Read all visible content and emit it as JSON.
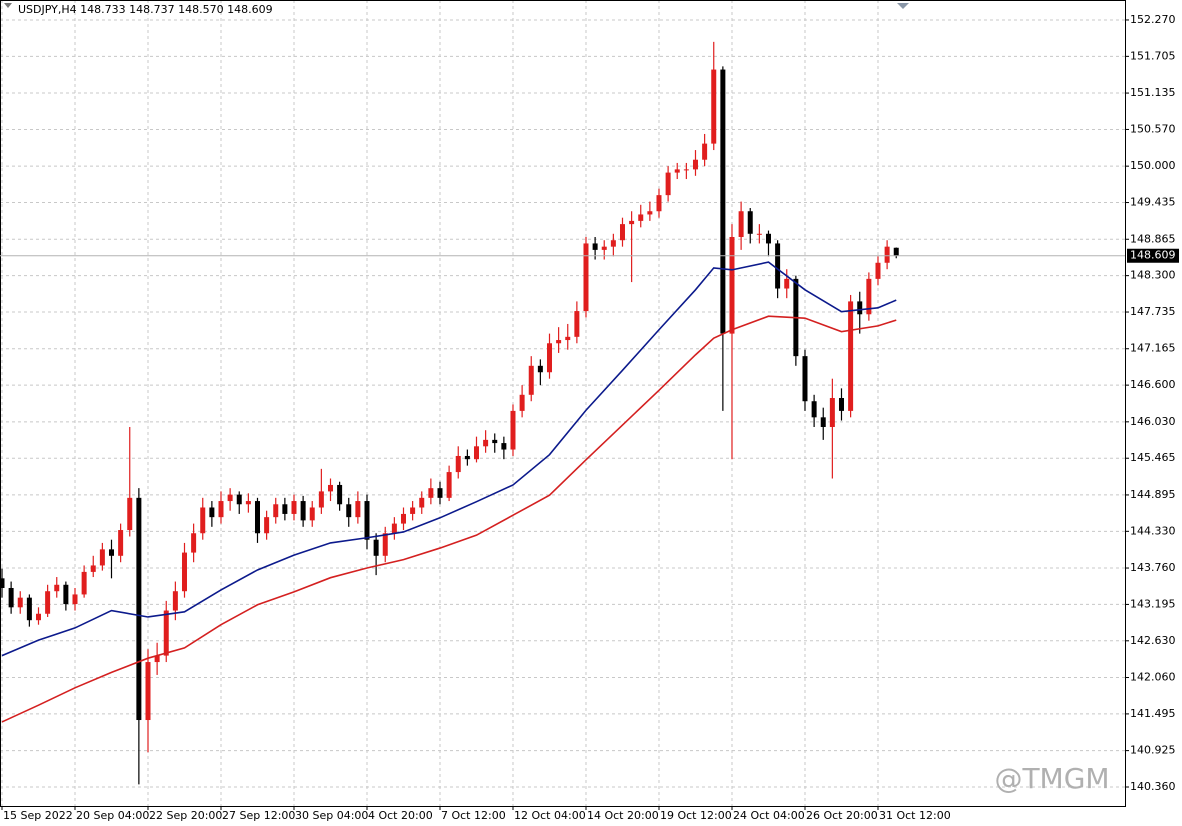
{
  "chart_data": {
    "type": "candlestick",
    "header": "USDJPY,H4 148.733 148.737 148.570 148.609",
    "watermark": "@TMGM",
    "up_color": "#e01e1e",
    "down_color": "#000000",
    "grid": true,
    "ylim": [
      140.065,
      152.58
    ],
    "xlim": [
      -0.219,
      123.07
    ],
    "yticks": [
      {
        "value": 152.27,
        "label": "152.270"
      },
      {
        "value": 151.705,
        "label": "151.705"
      },
      {
        "value": 151.135,
        "label": "151.135"
      },
      {
        "value": 150.57,
        "label": "150.570"
      },
      {
        "value": 150,
        "label": "150.000"
      },
      {
        "value": 149.435,
        "label": "149.435"
      },
      {
        "value": 148.865,
        "label": "148.865"
      },
      {
        "value": 148.3,
        "label": "148.300"
      },
      {
        "value": 147.735,
        "label": "147.735"
      },
      {
        "value": 147.165,
        "label": "147.165"
      },
      {
        "value": 146.6,
        "label": "146.600"
      },
      {
        "value": 146.03,
        "label": "146.030"
      },
      {
        "value": 145.465,
        "label": "145.465"
      },
      {
        "value": 144.895,
        "label": "144.895"
      },
      {
        "value": 144.33,
        "label": "144.330"
      },
      {
        "value": 143.76,
        "label": "143.760"
      },
      {
        "value": 143.195,
        "label": "143.195"
      },
      {
        "value": 142.63,
        "label": "142.630"
      },
      {
        "value": 142.06,
        "label": "142.060"
      },
      {
        "value": 141.495,
        "label": "141.495"
      },
      {
        "value": 140.925,
        "label": "140.925"
      },
      {
        "value": 140.36,
        "label": "140.360"
      }
    ],
    "xticks": [
      {
        "value": 0,
        "label": "15 Sep 2022"
      },
      {
        "value": 8,
        "label": "20 Sep 04:00"
      },
      {
        "value": 16,
        "label": "22 Sep 20:00"
      },
      {
        "value": 24,
        "label": "27 Sep 12:00"
      },
      {
        "value": 32,
        "label": "30 Sep 04:00"
      },
      {
        "value": 40,
        "label": "4 Oct 20:00"
      },
      {
        "value": 48,
        "label": "7 Oct 12:00"
      },
      {
        "value": 56,
        "label": "12 Oct 04:00"
      },
      {
        "value": 64,
        "label": "14 Oct 20:00"
      },
      {
        "value": 72,
        "label": "19 Oct 12:00"
      },
      {
        "value": 80,
        "label": "24 Oct 04:00"
      },
      {
        "value": 88,
        "label": "26 Oct 20:00"
      },
      {
        "value": 96,
        "label": "31 Oct 12:00"
      }
    ],
    "last_price": {
      "value": 148.609,
      "label": "148.609"
    },
    "x": [
      0,
      1,
      2,
      3,
      4,
      5,
      6,
      7,
      8,
      9,
      10,
      11,
      12,
      13,
      14,
      15,
      16,
      17,
      18,
      19,
      20,
      21,
      22,
      23,
      24,
      25,
      26,
      27,
      28,
      29,
      30,
      31,
      32,
      33,
      34,
      35,
      36,
      37,
      38,
      39,
      40,
      41,
      42,
      43,
      44,
      45,
      46,
      47,
      48,
      49,
      50,
      51,
      52,
      53,
      54,
      55,
      56,
      57,
      58,
      59,
      60,
      61,
      62,
      63,
      64,
      65,
      66,
      67,
      68,
      69,
      70,
      71,
      72,
      73,
      74,
      75,
      76,
      77,
      78,
      79,
      80,
      81,
      82,
      83,
      84,
      85,
      86,
      87,
      88,
      89,
      90,
      91,
      92,
      93,
      94,
      95,
      96,
      97,
      98
    ],
    "open": [
      143.6,
      143.45,
      143.15,
      143.3,
      142.95,
      143.05,
      143.4,
      143.5,
      143.2,
      143.35,
      143.7,
      143.8,
      144.05,
      143.95,
      144.35,
      144.85,
      141.4,
      142.3,
      142.4,
      143.1,
      143.4,
      144.0,
      144.3,
      144.7,
      144.55,
      144.8,
      144.9,
      144.75,
      144.8,
      144.3,
      144.55,
      144.75,
      144.6,
      144.8,
      144.5,
      144.7,
      144.95,
      145.05,
      144.75,
      144.55,
      144.8,
      144.2,
      143.95,
      144.3,
      144.45,
      144.6,
      144.7,
      144.85,
      145.0,
      144.85,
      145.25,
      145.5,
      145.45,
      145.65,
      145.75,
      145.7,
      145.6,
      146.2,
      146.45,
      146.9,
      146.8,
      147.25,
      147.3,
      147.35,
      147.75,
      148.8,
      148.7,
      148.75,
      148.85,
      149.1,
      149.15,
      149.25,
      149.3,
      149.55,
      149.9,
      149.95,
      149.95,
      150.1,
      150.35,
      151.5,
      147.4,
      148.9,
      149.3,
      148.95,
      148.95,
      148.8,
      148.1,
      148.25,
      147.05,
      146.35,
      146.1,
      145.95,
      146.4,
      146.2,
      147.9,
      147.7,
      148.25,
      148.5,
      148.733
    ],
    "high": [
      143.75,
      143.55,
      143.4,
      143.35,
      143.15,
      143.5,
      143.62,
      143.55,
      143.45,
      143.8,
      143.95,
      144.15,
      144.2,
      144.45,
      145.95,
      145.0,
      142.5,
      142.6,
      143.25,
      143.55,
      144.15,
      144.45,
      144.85,
      144.8,
      144.95,
      145.0,
      144.95,
      144.92,
      144.85,
      144.65,
      144.85,
      144.85,
      144.9,
      144.88,
      144.8,
      145.3,
      145.15,
      145.1,
      144.85,
      144.95,
      144.9,
      144.3,
      144.4,
      144.55,
      144.7,
      144.8,
      144.95,
      145.15,
      145.1,
      145.35,
      145.65,
      145.6,
      145.8,
      145.9,
      145.85,
      145.8,
      146.3,
      146.6,
      147.05,
      147.0,
      147.4,
      147.5,
      147.55,
      147.9,
      148.9,
      148.9,
      148.85,
      148.95,
      149.2,
      149.3,
      149.4,
      149.45,
      149.65,
      150.0,
      150.05,
      150.05,
      150.25,
      150.5,
      151.93,
      151.55,
      149.1,
      149.45,
      149.35,
      149.1,
      149.0,
      148.85,
      148.4,
      148.3,
      147.15,
      146.45,
      146.25,
      146.7,
      146.55,
      148.0,
      148.05,
      148.35,
      148.6,
      148.85,
      148.737
    ],
    "low": [
      143.3,
      143.05,
      143.05,
      142.85,
      142.88,
      143.0,
      143.3,
      143.1,
      143.1,
      143.3,
      143.62,
      143.72,
      143.6,
      143.85,
      144.25,
      140.4,
      140.9,
      142.1,
      142.3,
      142.95,
      143.3,
      143.85,
      144.2,
      144.4,
      144.45,
      144.65,
      144.6,
      144.62,
      144.15,
      144.2,
      144.45,
      144.5,
      144.5,
      144.4,
      144.4,
      144.6,
      144.8,
      144.65,
      144.4,
      144.45,
      144.05,
      143.65,
      143.85,
      144.2,
      144.35,
      144.5,
      144.6,
      144.75,
      144.75,
      144.8,
      145.15,
      145.35,
      145.4,
      145.55,
      145.55,
      145.45,
      145.5,
      146.1,
      146.35,
      146.6,
      146.7,
      147.1,
      147.15,
      147.25,
      147.65,
      148.55,
      148.55,
      148.6,
      148.75,
      148.2,
      149.05,
      149.15,
      149.2,
      149.45,
      149.8,
      149.8,
      149.85,
      150.0,
      150.25,
      146.2,
      145.45,
      148.7,
      148.8,
      148.8,
      148.6,
      147.95,
      147.95,
      146.9,
      146.2,
      145.95,
      145.75,
      145.15,
      146.05,
      146.1,
      147.4,
      147.6,
      148.15,
      148.4,
      148.57
    ],
    "close": [
      143.45,
      143.15,
      143.3,
      142.95,
      143.05,
      143.4,
      143.5,
      143.2,
      143.35,
      143.7,
      143.8,
      144.05,
      143.95,
      144.35,
      144.85,
      141.4,
      142.3,
      142.4,
      143.1,
      143.4,
      144.0,
      144.3,
      144.7,
      144.55,
      144.8,
      144.9,
      144.75,
      144.8,
      144.3,
      144.55,
      144.75,
      144.6,
      144.8,
      144.5,
      144.7,
      144.95,
      145.05,
      144.75,
      144.55,
      144.8,
      144.2,
      143.95,
      144.3,
      144.45,
      144.6,
      144.7,
      144.85,
      145.0,
      144.85,
      145.25,
      145.5,
      145.45,
      145.65,
      145.75,
      145.7,
      145.6,
      146.2,
      146.45,
      146.9,
      146.8,
      147.25,
      147.3,
      147.35,
      147.75,
      148.8,
      148.7,
      148.75,
      148.85,
      149.1,
      149.15,
      149.25,
      149.3,
      149.55,
      149.9,
      149.95,
      149.95,
      150.1,
      150.35,
      151.5,
      147.4,
      148.9,
      149.3,
      148.95,
      148.95,
      148.8,
      148.1,
      148.25,
      147.05,
      146.35,
      146.1,
      145.95,
      146.4,
      146.2,
      147.9,
      147.7,
      148.25,
      148.5,
      148.75,
      148.609
    ],
    "lines": [
      {
        "color": "#0c1a8c",
        "x": [
          0,
          4,
          8,
          12,
          16,
          20,
          24,
          28,
          32,
          36,
          40,
          44,
          48,
          52,
          56,
          60,
          64,
          68,
          72,
          76,
          78,
          80,
          84,
          88,
          92,
          96,
          98
        ],
        "values": [
          142.4,
          142.64,
          142.83,
          143.1,
          143.0,
          143.08,
          143.42,
          143.73,
          143.96,
          144.15,
          144.23,
          144.32,
          144.54,
          144.79,
          145.05,
          145.52,
          146.21,
          146.83,
          147.46,
          148.08,
          148.42,
          148.39,
          148.51,
          148.08,
          147.74,
          147.8,
          147.92
        ]
      },
      {
        "color": "#d42020",
        "x": [
          0,
          4,
          8,
          12,
          16,
          20,
          24,
          28,
          32,
          36,
          40,
          44,
          48,
          52,
          56,
          60,
          64,
          68,
          72,
          76,
          78,
          80,
          84,
          88,
          92,
          96,
          98
        ],
        "values": [
          141.37,
          141.63,
          141.9,
          142.14,
          142.36,
          142.52,
          142.88,
          143.19,
          143.39,
          143.61,
          143.76,
          143.89,
          144.07,
          144.27,
          144.58,
          144.89,
          145.44,
          145.98,
          146.52,
          147.07,
          147.33,
          147.46,
          147.67,
          147.64,
          147.43,
          147.52,
          147.61
        ]
      }
    ]
  }
}
